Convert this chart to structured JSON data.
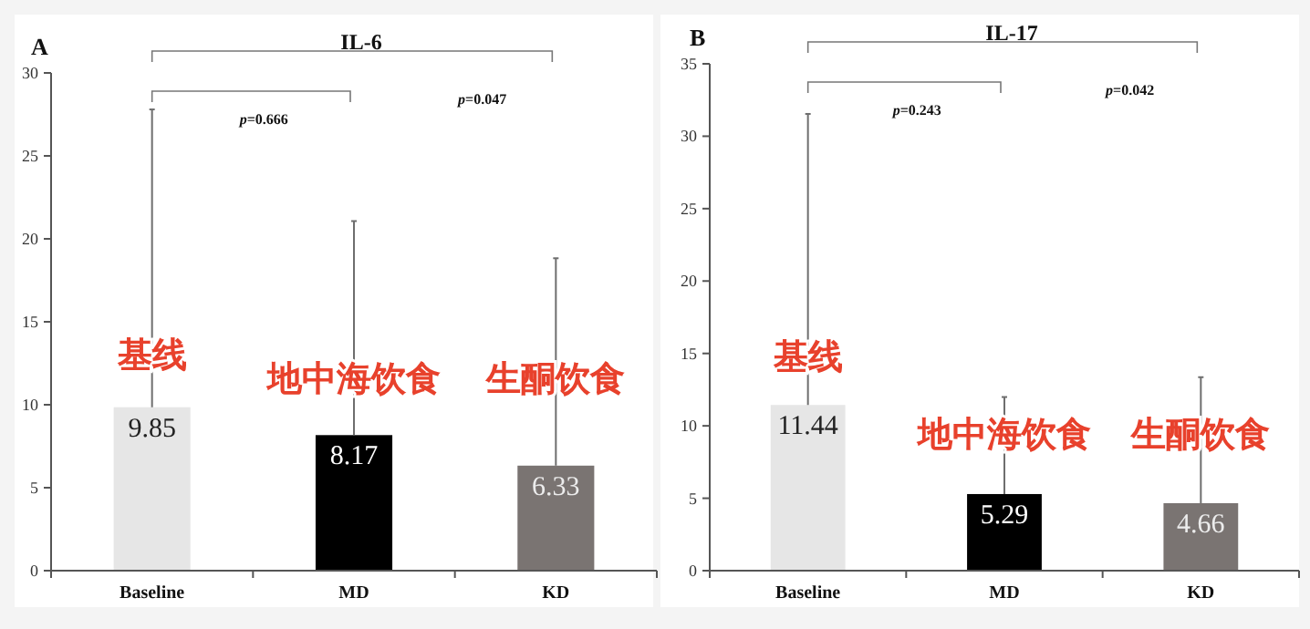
{
  "chart_data": [
    {
      "type": "bar",
      "title": "IL-6",
      "categories": [
        "Baseline",
        "MD",
        "KD"
      ],
      "values": [
        9.85,
        8.17,
        6.33
      ],
      "colors": [
        "#e6e6e6",
        "#000000",
        "#7a7472"
      ],
      "errors": [
        [
          9.85,
          27.8
        ],
        [
          8.17,
          21.07
        ],
        [
          6.33,
          18.83
        ]
      ],
      "ylim": [
        0,
        30
      ],
      "yticks": [
        0,
        5,
        10,
        15,
        20,
        25,
        30
      ],
      "data_labels": true,
      "grid": false,
      "annotations": [
        "A",
        "p=0.666",
        "p=0.047",
        {
          "text": "基线",
          "x": "Baseline",
          "y": 12.3
        },
        {
          "text": "地中海饮食",
          "x": "MD",
          "y": 10.9
        },
        {
          "text": "生酮饮食",
          "x": "KD",
          "y": 10.9
        }
      ]
    },
    {
      "type": "bar",
      "title": "IL-17",
      "categories": [
        "Baseline",
        "MD",
        "KD"
      ],
      "values": [
        11.44,
        5.29,
        4.66
      ],
      "colors": [
        "#e6e6e6",
        "#000000",
        "#7a7472"
      ],
      "errors": [
        [
          11.44,
          31.54
        ],
        [
          5.29,
          11.99
        ],
        [
          4.66,
          13.36
        ]
      ],
      "ylim": [
        0,
        35
      ],
      "yticks": [
        0,
        5,
        10,
        15,
        20,
        25,
        30,
        35
      ],
      "data_labels": true,
      "grid": false,
      "annotations": [
        "B",
        "p=0.243",
        "p=0.042",
        {
          "text": "基线",
          "x": "Baseline",
          "y": 14.0
        },
        {
          "text": "地中海饮食",
          "x": "MD",
          "y": 8.6
        },
        {
          "text": "生酮饮食",
          "x": "KD",
          "y": 8.6
        }
      ]
    }
  ]
}
